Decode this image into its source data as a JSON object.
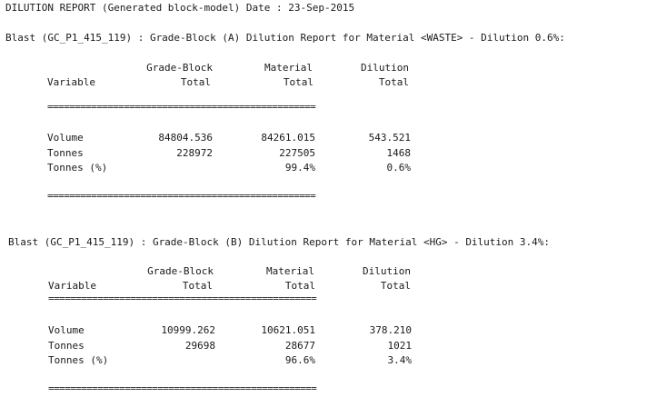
{
  "report_header": "DILUTION REPORT (Generated block-model) Date : 23-Sep-2015",
  "columns": {
    "variable": "Variable",
    "grade_block_1": "Grade-Block",
    "grade_block_2": "Total",
    "material_1": "Material",
    "material_2": "Total",
    "dilution_1": "Dilution",
    "dilution_2": "Total"
  },
  "separator": "=================================================",
  "blocks": [
    {
      "title": "Blast (GC_P1_415_119) : Grade-Block (A) Dilution Report for Material <WASTE> - Dilution 0.6%:",
      "rows": [
        {
          "variable": "Volume",
          "grade_block": "84804.536",
          "material": "84261.015",
          "dilution": "543.521"
        },
        {
          "variable": "Tonnes",
          "grade_block": "228972",
          "material": "227505",
          "dilution": "1468"
        },
        {
          "variable": "Tonnes (%)",
          "grade_block": "",
          "material": "99.4%",
          "dilution": "0.6%"
        }
      ]
    },
    {
      "title": "Blast (GC_P1_415_119) : Grade-Block (B) Dilution Report for Material <HG> - Dilution 3.4%:",
      "rows": [
        {
          "variable": "Volume",
          "grade_block": "10999.262",
          "material": "10621.051",
          "dilution": "378.210"
        },
        {
          "variable": "Tonnes",
          "grade_block": "29698",
          "material": "28677",
          "dilution": "1021"
        },
        {
          "variable": "Tonnes (%)",
          "grade_block": "",
          "material": "96.6%",
          "dilution": "3.4%"
        }
      ]
    }
  ]
}
